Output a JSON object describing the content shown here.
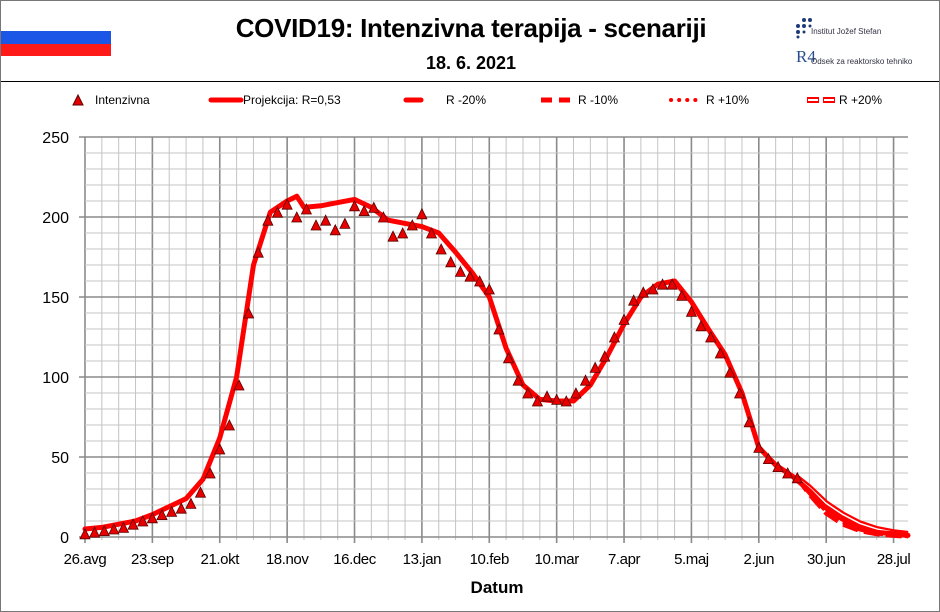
{
  "header": {
    "title": "COVID19: Intenzivna terapija - scenariji",
    "date": "18. 6. 2021",
    "logo_line1": "Institut Jožef Stefan",
    "logo_line2": "Odsek za reaktorsko tehniko",
    "logo_mark": "R4"
  },
  "colors": {
    "series": "#ff0000",
    "marker_fill": "#e60000",
    "marker_stroke": "#5a0000",
    "grid_minor": "#c4c4c4",
    "grid_major": "#8a8a8a",
    "flag_white": "#ffffff",
    "flag_blue": "#1c56e6",
    "flag_red": "#ff1a1a"
  },
  "legend": [
    {
      "label": "Intenzivna",
      "style": "triangle"
    },
    {
      "label": "Projekcija: R=0,53",
      "style": "solid"
    },
    {
      "label": "R -20%",
      "style": "long-dash"
    },
    {
      "label": "R -10%",
      "style": "dash"
    },
    {
      "label": "R +10%",
      "style": "dot"
    },
    {
      "label": "R +20%",
      "style": "hollow"
    }
  ],
  "chart_data": {
    "type": "line",
    "title": "COVID19: Intenzivna terapija - scenariji",
    "xlabel": "Datum",
    "ylabel": "",
    "xlim": [
      "2020-08-26",
      "2021-08-03"
    ],
    "ylim": [
      0,
      250
    ],
    "yticks": [
      0,
      50,
      100,
      150,
      200,
      250
    ],
    "xticks": [
      {
        "date": "2020-08-26",
        "label": "26.avg"
      },
      {
        "date": "2020-09-23",
        "label": "23.sep"
      },
      {
        "date": "2020-10-21",
        "label": "21.okt"
      },
      {
        "date": "2020-11-18",
        "label": "18.nov"
      },
      {
        "date": "2020-12-16",
        "label": "16.dec"
      },
      {
        "date": "2021-01-13",
        "label": "13.jan"
      },
      {
        "date": "2021-02-10",
        "label": "10.feb"
      },
      {
        "date": "2021-03-10",
        "label": "10.mar"
      },
      {
        "date": "2021-04-07",
        "label": "7.apr"
      },
      {
        "date": "2021-05-05",
        "label": "5.maj"
      },
      {
        "date": "2021-06-02",
        "label": "2.jun"
      },
      {
        "date": "2021-06-30",
        "label": "30.jun"
      },
      {
        "date": "2021-07-28",
        "label": "28.jul"
      }
    ],
    "grid": true,
    "legend_position": "top",
    "observed": {
      "name": "Intenzivna",
      "start": "2020-08-26",
      "interval_days": 4,
      "values": [
        2,
        3,
        4,
        5,
        6,
        8,
        10,
        12,
        14,
        16,
        18,
        21,
        28,
        40,
        55,
        70,
        95,
        140,
        178,
        198,
        203,
        208,
        200,
        205,
        195,
        198,
        192,
        196,
        207,
        204,
        206,
        200,
        188,
        190,
        195,
        202,
        190,
        180,
        172,
        166,
        163,
        160,
        155,
        130,
        112,
        98,
        90,
        85,
        88,
        86,
        85,
        90,
        98,
        106,
        113,
        125,
        136,
        148,
        153,
        155,
        158,
        158,
        151,
        141,
        132,
        125,
        115,
        103,
        90,
        72,
        56,
        49,
        44,
        40,
        37
      ]
    },
    "projection": {
      "name": "Projekcija: R=0,53",
      "dates": [
        "2020-08-26",
        "2020-09-02",
        "2020-09-09",
        "2020-09-16",
        "2020-09-23",
        "2020-09-30",
        "2020-10-07",
        "2020-10-14",
        "2020-10-21",
        "2020-10-28",
        "2020-11-04",
        "2020-11-11",
        "2020-11-18",
        "2020-11-22",
        "2020-11-25",
        "2020-12-02",
        "2020-12-09",
        "2020-12-16",
        "2020-12-23",
        "2020-12-30",
        "2021-01-06",
        "2021-01-13",
        "2021-01-20",
        "2021-01-27",
        "2021-02-03",
        "2021-02-10",
        "2021-02-17",
        "2021-02-24",
        "2021-03-03",
        "2021-03-10",
        "2021-03-17",
        "2021-03-24",
        "2021-03-31",
        "2021-04-07",
        "2021-04-14",
        "2021-04-21",
        "2021-04-28",
        "2021-05-05",
        "2021-05-12",
        "2021-05-19",
        "2021-05-26",
        "2021-06-02",
        "2021-06-09",
        "2021-06-16",
        "2021-06-23",
        "2021-06-30",
        "2021-07-07",
        "2021-07-14",
        "2021-07-21",
        "2021-07-28",
        "2021-08-03"
      ],
      "values": [
        5,
        6,
        8,
        10,
        14,
        19,
        24,
        36,
        62,
        100,
        170,
        203,
        210,
        213,
        206,
        207,
        209,
        211,
        206,
        198,
        196,
        194,
        190,
        178,
        165,
        150,
        118,
        95,
        86,
        85,
        85,
        95,
        113,
        133,
        150,
        158,
        160,
        147,
        130,
        114,
        90,
        56,
        45,
        38,
        29,
        18,
        11,
        6,
        3,
        2,
        1
      ]
    },
    "scenarios": [
      {
        "name": "R -20%",
        "dates": [
          "2021-06-18",
          "2021-06-23",
          "2021-06-30",
          "2021-07-07",
          "2021-07-14",
          "2021-07-21",
          "2021-07-28",
          "2021-08-03"
        ],
        "values": [
          37,
          27,
          15,
          8,
          4,
          2,
          1,
          0.5
        ]
      },
      {
        "name": "R -10%",
        "dates": [
          "2021-06-18",
          "2021-06-23",
          "2021-06-30",
          "2021-07-07",
          "2021-07-14",
          "2021-07-21",
          "2021-07-28",
          "2021-08-03"
        ],
        "values": [
          37,
          28,
          16.5,
          9.5,
          5,
          2.5,
          1.5,
          0.8
        ]
      },
      {
        "name": "R +10%",
        "dates": [
          "2021-06-18",
          "2021-06-23",
          "2021-06-30",
          "2021-07-07",
          "2021-07-14",
          "2021-07-21",
          "2021-07-28",
          "2021-08-03"
        ],
        "values": [
          37,
          30,
          19.5,
          12.5,
          7,
          4,
          2.5,
          1.5
        ]
      },
      {
        "name": "R +20%",
        "dates": [
          "2021-06-18",
          "2021-06-23",
          "2021-06-30",
          "2021-07-07",
          "2021-07-14",
          "2021-07-21",
          "2021-07-28",
          "2021-08-03"
        ],
        "values": [
          37,
          31,
          21,
          14,
          8.5,
          5,
          3,
          2
        ]
      }
    ]
  }
}
